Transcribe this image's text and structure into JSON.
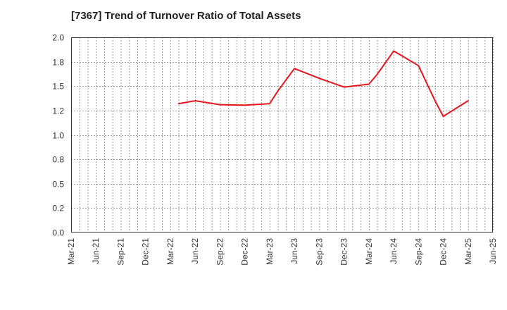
{
  "chart_data": {
    "type": "line",
    "title": "[7367]  Trend of Turnover Ratio of Total Assets",
    "xlabel": "",
    "ylabel": "",
    "ylim": [
      0.0,
      2.0
    ],
    "y_ticks": [
      "0.0",
      "0.2",
      "0.5",
      "0.8",
      "1.0",
      "1.2",
      "1.5",
      "1.8",
      "2.0"
    ],
    "x_ticks": [
      "Mar-21",
      "Jun-21",
      "Sep-21",
      "Dec-21",
      "Mar-22",
      "Jun-22",
      "Sep-22",
      "Dec-22",
      "Mar-23",
      "Jun-23",
      "Sep-23",
      "Dec-23",
      "Mar-24",
      "Jun-24",
      "Sep-24",
      "Dec-24",
      "Mar-25",
      "Jun-25"
    ],
    "grid": true,
    "grid_style": "dotted",
    "series": [
      {
        "color": "#e8141c",
        "points": [
          {
            "x": "Apr-22",
            "y": 1.32
          },
          {
            "x": "Jun-22",
            "y": 1.35
          },
          {
            "x": "Sep-22",
            "y": 1.31
          },
          {
            "x": "Dec-22",
            "y": 1.305
          },
          {
            "x": "Mar-23",
            "y": 1.32
          },
          {
            "x": "Apr-23",
            "y": 1.45
          },
          {
            "x": "Jun-23",
            "y": 1.68
          },
          {
            "x": "Sep-23",
            "y": 1.58
          },
          {
            "x": "Dec-23",
            "y": 1.49
          },
          {
            "x": "Mar-24",
            "y": 1.52
          },
          {
            "x": "Apr-24",
            "y": 1.62
          },
          {
            "x": "Jun-24",
            "y": 1.86
          },
          {
            "x": "Sep-24",
            "y": 1.71
          },
          {
            "x": "Nov-24",
            "y": 1.35
          },
          {
            "x": "Dec-24",
            "y": 1.19
          },
          {
            "x": "Mar-25",
            "y": 1.35
          }
        ]
      }
    ]
  }
}
